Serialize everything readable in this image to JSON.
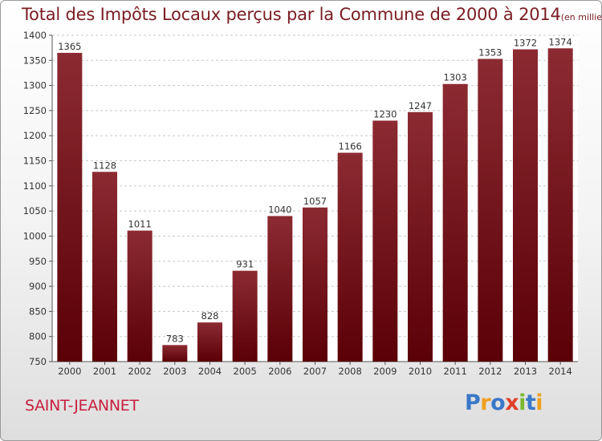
{
  "title": "Total des Impôts Locaux perçus par la Commune de 2000 à 2014",
  "unit_note": "(en milliers d'€)",
  "commune": "SAINT-JEANNET",
  "logo": {
    "text": "Proxiti",
    "letters": [
      {
        "ch": "P",
        "color": "#3a78c8"
      },
      {
        "ch": "r",
        "color": "#f0a020"
      },
      {
        "ch": "o",
        "color": "#3a78c8"
      },
      {
        "ch": "x",
        "color": "#e0402a"
      },
      {
        "ch": "i",
        "color": "#7ab830"
      },
      {
        "ch": "t",
        "color": "#3a78c8"
      },
      {
        "ch": "i",
        "color": "#f0a020"
      }
    ]
  },
  "colors": {
    "bar_top": "#8c2a32",
    "bar_bottom": "#5a0006",
    "title": "#7a1c22",
    "commune": "#c72040"
  },
  "chart_data": {
    "type": "bar",
    "title": "Total des Impôts Locaux perçus par la Commune de 2000 à 2014",
    "xlabel": "",
    "ylabel": "",
    "categories": [
      "2000",
      "2001",
      "2002",
      "2003",
      "2004",
      "2005",
      "2006",
      "2007",
      "2008",
      "2009",
      "2010",
      "2011",
      "2012",
      "2013",
      "2014"
    ],
    "values": [
      1365,
      1128,
      1011,
      783,
      828,
      931,
      1040,
      1057,
      1166,
      1230,
      1247,
      1303,
      1353,
      1372,
      1374
    ],
    "ylim": [
      750,
      1400
    ],
    "yticks": [
      750,
      800,
      850,
      900,
      950,
      1000,
      1050,
      1100,
      1150,
      1200,
      1250,
      1300,
      1350,
      1400
    ],
    "grid": true
  }
}
